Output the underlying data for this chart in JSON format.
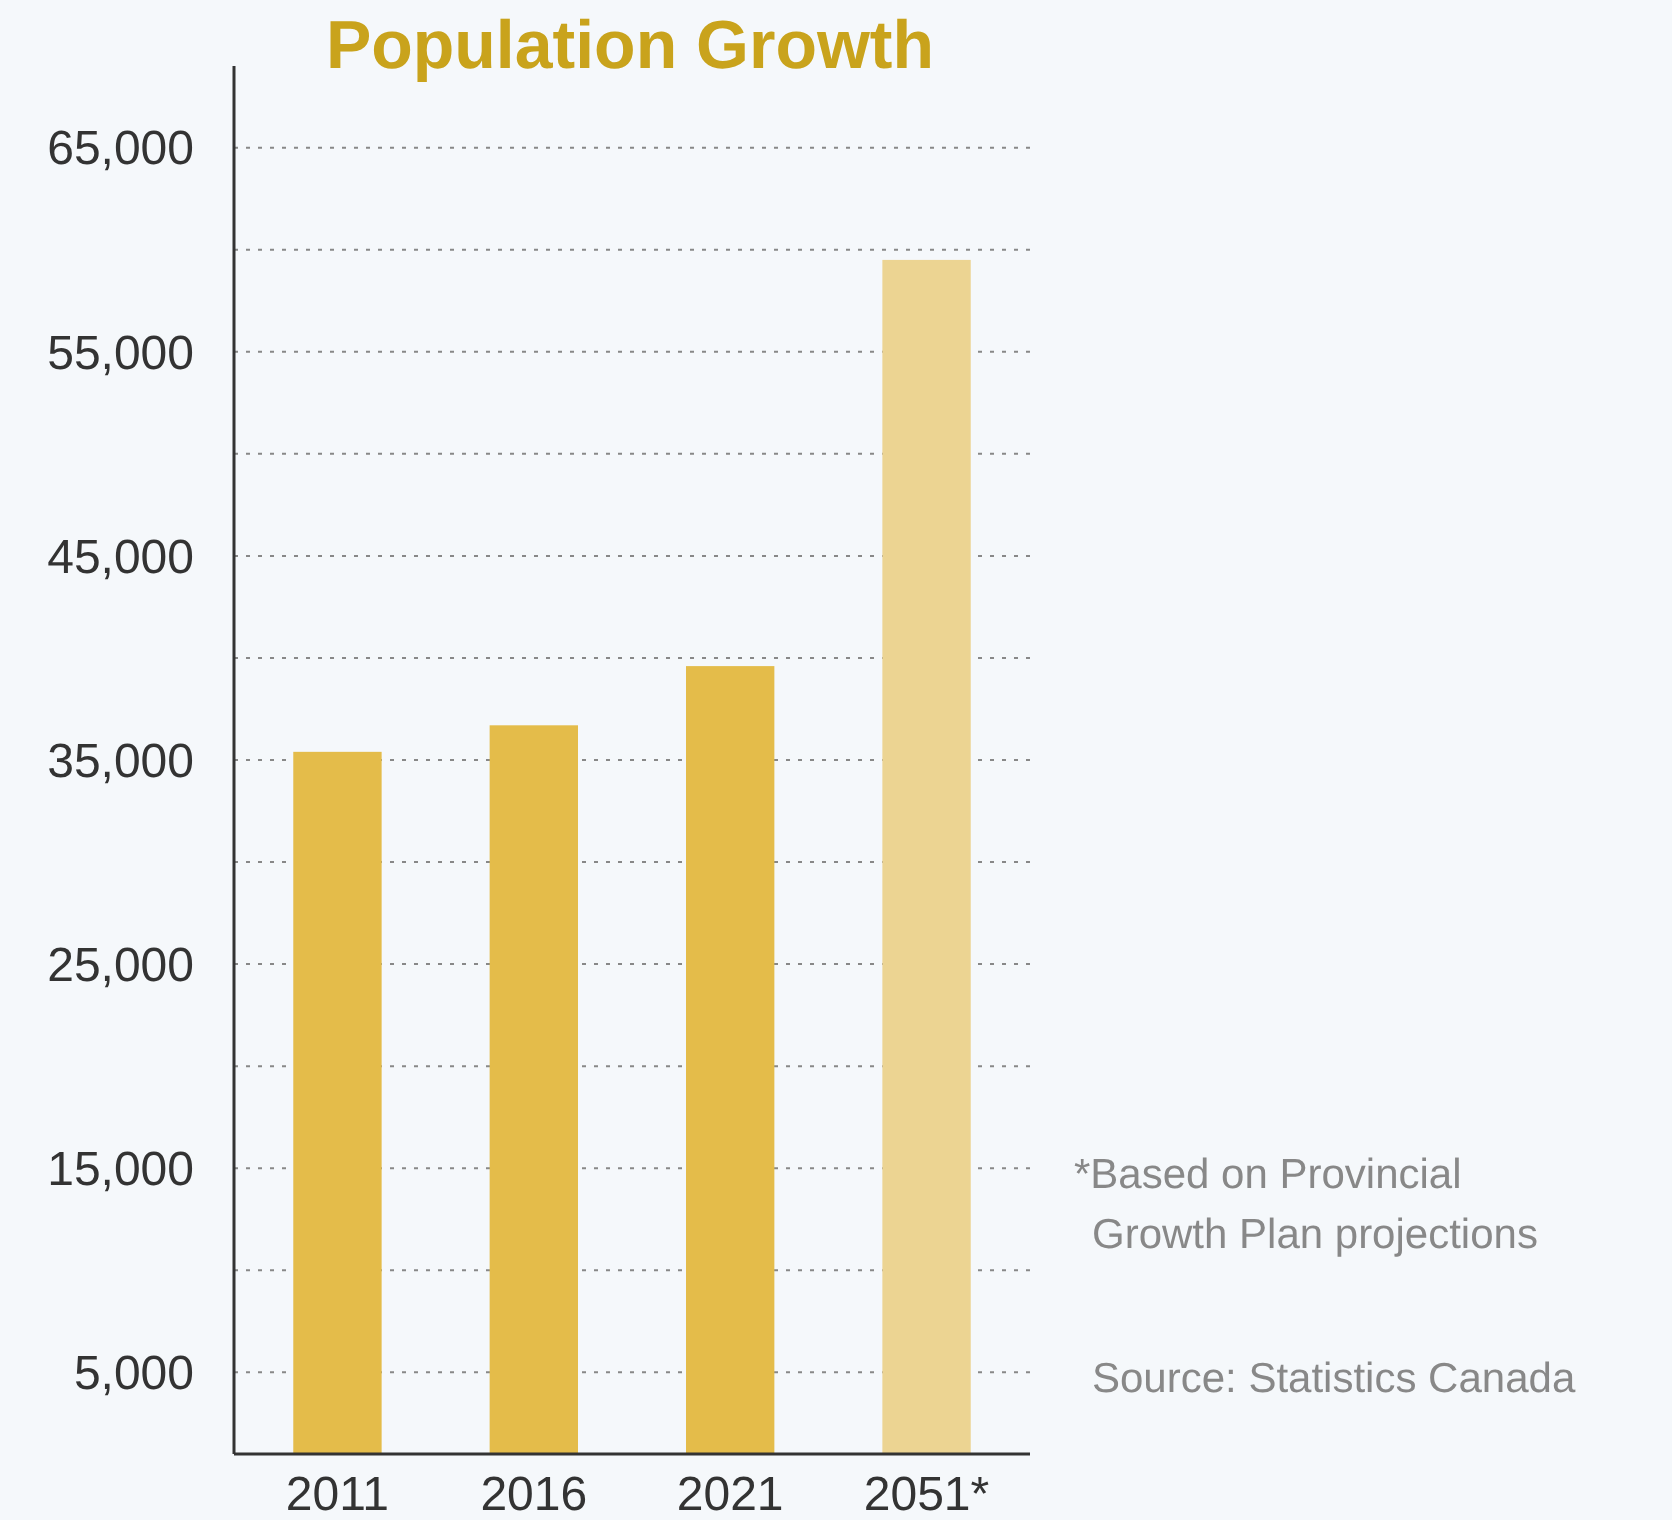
{
  "chart_data": {
    "type": "bar",
    "title": "Population Growth",
    "categories": [
      "2011",
      "2016",
      "2021",
      "2051*"
    ],
    "values": [
      35400,
      36700,
      39600,
      59500
    ],
    "colors": [
      "#e4bc4a",
      "#e4bc4a",
      "#e4bc4a",
      "#ecd492"
    ],
    "ylim": [
      1000,
      69000
    ],
    "yticks": [
      {
        "value": 5000,
        "label": "5,000"
      },
      {
        "value": 10000,
        "label": null
      },
      {
        "value": 15000,
        "label": "15,000"
      },
      {
        "value": 20000,
        "label": null
      },
      {
        "value": 25000,
        "label": "25,000"
      },
      {
        "value": 30000,
        "label": null
      },
      {
        "value": 35000,
        "label": "35,000"
      },
      {
        "value": 40000,
        "label": null
      },
      {
        "value": 45000,
        "label": "45,000"
      },
      {
        "value": 50000,
        "label": null
      },
      {
        "value": 55000,
        "label": "55,000"
      },
      {
        "value": 60000,
        "label": null
      },
      {
        "value": 65000,
        "label": "65,000"
      }
    ],
    "grid": "y",
    "annotations": [
      "*Based on Provincial Growth Plan projections",
      "Source: Statistics Canada"
    ]
  }
}
